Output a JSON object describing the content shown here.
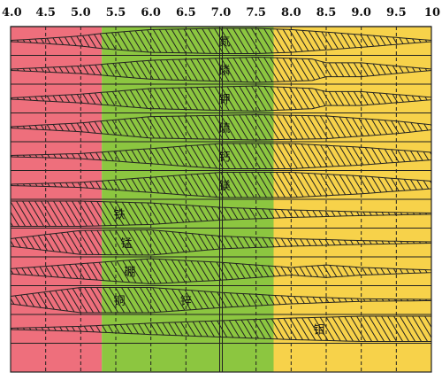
{
  "ph_ticks": [
    "4.0",
    "4.5",
    "5.0",
    "5.5",
    "6.0",
    "6.5",
    "7.0",
    "7.5",
    "8.0",
    "8.5",
    "9.0",
    "9.5",
    "10"
  ],
  "zones": [
    {
      "from": 4.0,
      "to": 5.3,
      "color": "#ee6f7c"
    },
    {
      "from": 5.3,
      "to": 7.75,
      "color": "#8cc640"
    },
    {
      "from": 7.75,
      "to": 10.0,
      "color": "#f7d24a"
    }
  ],
  "rows": [
    {
      "label": "氮",
      "label_ph": 7.05,
      "profile": [
        [
          4.0,
          0.05
        ],
        [
          4.5,
          0.2
        ],
        [
          5.0,
          0.4
        ],
        [
          5.3,
          0.6
        ],
        [
          6.0,
          0.9
        ],
        [
          7.0,
          1.0
        ],
        [
          7.5,
          1.0
        ],
        [
          8.0,
          0.9
        ],
        [
          9.0,
          0.5
        ],
        [
          10.0,
          0.05
        ]
      ]
    },
    {
      "label": "磷",
      "label_ph": 7.05,
      "profile": [
        [
          4.0,
          0.05
        ],
        [
          5.0,
          0.3
        ],
        [
          6.0,
          0.75
        ],
        [
          7.5,
          1.0
        ],
        [
          8.3,
          0.85
        ],
        [
          8.5,
          0.55
        ],
        [
          9.0,
          0.55
        ],
        [
          10.0,
          0.05
        ]
      ]
    },
    {
      "label": "钾",
      "label_ph": 7.05,
      "profile": [
        [
          4.0,
          0.05
        ],
        [
          5.0,
          0.35
        ],
        [
          6.0,
          0.8
        ],
        [
          7.5,
          1.0
        ],
        [
          8.3,
          0.8
        ],
        [
          8.5,
          0.55
        ],
        [
          9.0,
          0.55
        ],
        [
          10.0,
          0.1
        ]
      ]
    },
    {
      "label": "硫",
      "label_ph": 7.05,
      "profile": [
        [
          4.0,
          0.05
        ],
        [
          5.0,
          0.35
        ],
        [
          6.0,
          0.85
        ],
        [
          7.5,
          1.0
        ],
        [
          8.5,
          0.9
        ],
        [
          9.5,
          0.5
        ],
        [
          10.0,
          0.2
        ]
      ]
    },
    {
      "label": "钙",
      "label_ph": 7.05,
      "profile": [
        [
          4.0,
          0.05
        ],
        [
          5.0,
          0.2
        ],
        [
          6.0,
          0.6
        ],
        [
          7.0,
          1.0
        ],
        [
          8.0,
          1.0
        ],
        [
          9.0,
          0.7
        ],
        [
          10.0,
          0.3
        ]
      ]
    },
    {
      "label": "镁",
      "label_ph": 7.05,
      "profile": [
        [
          4.0,
          0.05
        ],
        [
          5.0,
          0.2
        ],
        [
          6.0,
          0.6
        ],
        [
          7.0,
          1.0
        ],
        [
          8.0,
          1.0
        ],
        [
          9.0,
          0.7
        ],
        [
          10.0,
          0.3
        ]
      ]
    },
    {
      "label": "铁",
      "label_ph": 5.55,
      "profile": [
        [
          4.0,
          1.0
        ],
        [
          5.0,
          1.0
        ],
        [
          6.0,
          0.85
        ],
        [
          7.0,
          0.5
        ],
        [
          8.0,
          0.3
        ],
        [
          9.0,
          0.15
        ],
        [
          10.0,
          0.05
        ]
      ]
    },
    {
      "label": "锰",
      "label_ph": 5.65,
      "profile": [
        [
          4.0,
          0.3
        ],
        [
          5.0,
          0.95
        ],
        [
          6.0,
          1.0
        ],
        [
          7.0,
          0.5
        ],
        [
          8.0,
          0.3
        ],
        [
          9.0,
          0.15
        ],
        [
          10.0,
          0.05
        ]
      ]
    },
    {
      "label": "硼",
      "label_ph": 5.7,
      "profile": [
        [
          4.0,
          0.2
        ],
        [
          5.0,
          0.6
        ],
        [
          6.0,
          1.0
        ],
        [
          7.0,
          0.7
        ],
        [
          8.0,
          0.3
        ],
        [
          8.5,
          0.5
        ],
        [
          9.0,
          0.3
        ],
        [
          10.0,
          0.1
        ]
      ]
    },
    {
      "label": "铜",
      "label_ph": 5.55,
      "profile": [
        [
          4.0,
          0.3
        ],
        [
          5.0,
          1.0
        ],
        [
          6.0,
          1.0
        ],
        [
          7.0,
          0.6
        ],
        [
          8.0,
          0.3
        ],
        [
          9.0,
          0.1
        ],
        [
          10.0,
          0.05
        ]
      ]
    },
    {
      "label": "锌",
      "label_ph": 6.5,
      "profile": [
        [
          4.0,
          0.3
        ],
        [
          5.0,
          1.0
        ],
        [
          6.0,
          1.0
        ],
        [
          7.0,
          0.6
        ],
        [
          8.0,
          0.3
        ],
        [
          9.0,
          0.1
        ],
        [
          10.0,
          0.05
        ]
      ]
    },
    {
      "label": "钼",
      "label_ph": 8.4,
      "profile": [
        [
          4.0,
          0.05
        ],
        [
          5.0,
          0.2
        ],
        [
          6.0,
          0.45
        ],
        [
          7.0,
          0.65
        ],
        [
          8.0,
          0.85
        ],
        [
          9.0,
          1.0
        ],
        [
          10.0,
          1.0
        ]
      ]
    }
  ],
  "row_label_index": [
    0,
    1,
    2,
    3,
    4,
    5,
    6,
    7,
    8,
    9,
    9,
    10
  ]
}
